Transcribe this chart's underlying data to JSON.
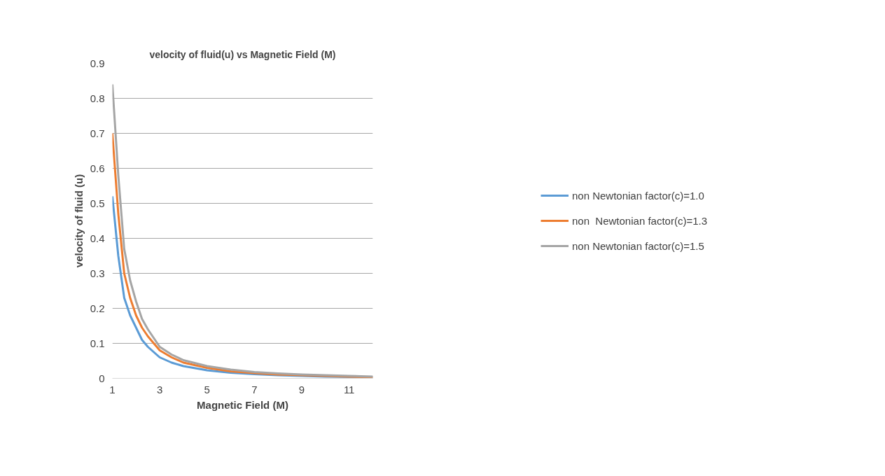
{
  "chart_data": {
    "type": "line",
    "title": "velocity of fluid(u) vs Magnetic Field (M)",
    "xlabel": "Magnetic Field (M)",
    "ylabel": "velocity of fluid (u)",
    "x": [
      1,
      1.25,
      1.5,
      1.75,
      2,
      2.25,
      2.5,
      3,
      3.5,
      4,
      5,
      6,
      7,
      8,
      9,
      10,
      11,
      12
    ],
    "series": [
      {
        "name": "non Newtonian factor(c)=1.0",
        "color": "#5b9bd5",
        "values": [
          0.52,
          0.35,
          0.23,
          0.18,
          0.145,
          0.11,
          0.09,
          0.06,
          0.045,
          0.035,
          0.023,
          0.016,
          0.012,
          0.009,
          0.007,
          0.005,
          0.004,
          0.003
        ]
      },
      {
        "name": "non  Newtonian factor(c)=1.3",
        "color": "#ed7d31",
        "values": [
          0.7,
          0.47,
          0.3,
          0.23,
          0.18,
          0.145,
          0.12,
          0.08,
          0.06,
          0.045,
          0.03,
          0.02,
          0.015,
          0.011,
          0.009,
          0.007,
          0.005,
          0.004
        ]
      },
      {
        "name": "non Newtonian factor(c)=1.5",
        "color": "#a5a5a5",
        "values": [
          0.84,
          0.58,
          0.37,
          0.28,
          0.22,
          0.17,
          0.14,
          0.09,
          0.068,
          0.052,
          0.035,
          0.025,
          0.018,
          0.014,
          0.011,
          0.009,
          0.007,
          0.005
        ]
      }
    ],
    "xlim": [
      1,
      12
    ],
    "xticks": [
      1,
      3,
      5,
      7,
      9,
      11
    ],
    "ylim": [
      0,
      0.9
    ],
    "yticks": [
      0,
      0.1,
      0.2,
      0.3,
      0.4,
      0.5,
      0.6,
      0.7,
      0.8,
      0.9
    ],
    "grid": "y",
    "legend": "right",
    "marker": "none",
    "line_style": "solid"
  }
}
